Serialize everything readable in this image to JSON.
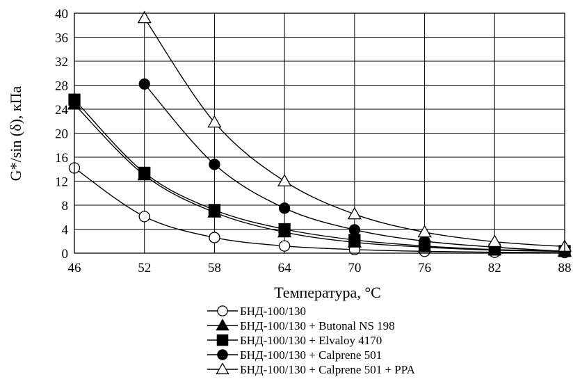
{
  "chart_data": {
    "type": "line",
    "title": "",
    "xlabel": "Температура, °С",
    "ylabel": "G*/sin (δ), кПа",
    "xlim": [
      46,
      88
    ],
    "ylim": [
      0,
      40
    ],
    "x_ticks": [
      46,
      52,
      58,
      64,
      70,
      76,
      82,
      88
    ],
    "y_ticks": [
      0,
      4,
      8,
      12,
      16,
      20,
      24,
      28,
      32,
      36,
      40
    ],
    "grid": true,
    "legend_position": "bottom",
    "series": [
      {
        "name": "БНД-100/130",
        "marker": "circle-open",
        "x": [
          46,
          52,
          58,
          64,
          70,
          76,
          82,
          88
        ],
        "values": [
          14.2,
          6.1,
          2.6,
          1.2,
          0.6,
          0.3,
          0.15,
          0.1
        ]
      },
      {
        "name": "БНД-100/130 + Butonal NS 198",
        "marker": "triangle-filled",
        "x": [
          46,
          52,
          58,
          64,
          70,
          76,
          82,
          88
        ],
        "values": [
          24.8,
          13.0,
          6.8,
          3.5,
          1.8,
          1.0,
          0.5,
          0.3
        ]
      },
      {
        "name": "БНД-100/130 + Elvaloy 4170",
        "marker": "square-filled",
        "x": [
          46,
          52,
          58,
          64,
          70,
          76,
          82,
          88
        ],
        "values": [
          25.6,
          13.4,
          7.2,
          4.0,
          2.2,
          1.2,
          0.6,
          0.35
        ]
      },
      {
        "name": "БНД-100/130 + Calprene 501",
        "marker": "circle-filled",
        "x": [
          52,
          58,
          64,
          70,
          76,
          82,
          88
        ],
        "values": [
          28.2,
          14.8,
          7.5,
          3.9,
          2.0,
          1.0,
          0.3
        ]
      },
      {
        "name": "БНД-100/130 + Calprene 501 + PPA",
        "marker": "triangle-open",
        "x": [
          52,
          58,
          64,
          70,
          76,
          82,
          88
        ],
        "values": [
          39.2,
          21.8,
          12.0,
          6.5,
          3.5,
          1.9,
          1.1
        ]
      }
    ]
  }
}
